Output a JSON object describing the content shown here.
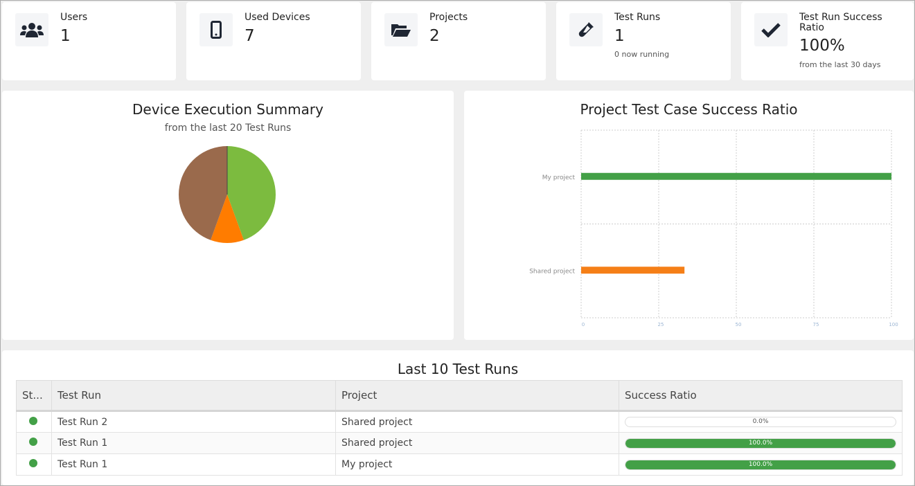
{
  "stats": [
    {
      "label": "Users",
      "value": "1",
      "icon": "users-icon"
    },
    {
      "label": "Used Devices",
      "value": "7",
      "icon": "mobile-icon"
    },
    {
      "label": "Projects",
      "value": "2",
      "icon": "folder-open-icon"
    },
    {
      "label": "Test Runs",
      "value": "1",
      "sub": "0 now running",
      "icon": "flask-icon"
    },
    {
      "label": "Test Run Success Ratio",
      "value": "100%",
      "sub": "from the last 30 days",
      "icon": "check-icon"
    }
  ],
  "device_summary": {
    "title": "Device Execution Summary",
    "subtitle": "from the last 20 Test Runs"
  },
  "project_ratio": {
    "title": "Project Test Case Success Ratio"
  },
  "chart_data": [
    {
      "type": "pie",
      "values": [
        4,
        1,
        4
      ],
      "colors": [
        "#7cbb3f",
        "#ff7c00",
        "#9a6a4c"
      ]
    },
    {
      "type": "bar",
      "orientation": "horizontal",
      "categories": [
        "My project",
        "Shared project"
      ],
      "values": [
        100,
        33.3
      ],
      "colors": [
        "#43a047",
        "#f57f17"
      ],
      "xlim": [
        0,
        100
      ],
      "xticks": [
        "0",
        "25",
        "50",
        "75",
        "100"
      ],
      "grid": true
    }
  ],
  "last_runs": {
    "title": "Last 10 Test Runs",
    "columns": [
      "St...",
      "Test Run",
      "Project",
      "Success Ratio"
    ],
    "rows": [
      {
        "status": "success",
        "name": "Test Run 2",
        "project": "Shared project",
        "ratio": 0,
        "ratio_text": "0.0%"
      },
      {
        "status": "success",
        "name": "Test Run 1",
        "project": "Shared project",
        "ratio": 100,
        "ratio_text": "100.0%"
      },
      {
        "status": "success",
        "name": "Test Run 1",
        "project": "My project",
        "ratio": 100,
        "ratio_text": "100.0%"
      }
    ]
  }
}
